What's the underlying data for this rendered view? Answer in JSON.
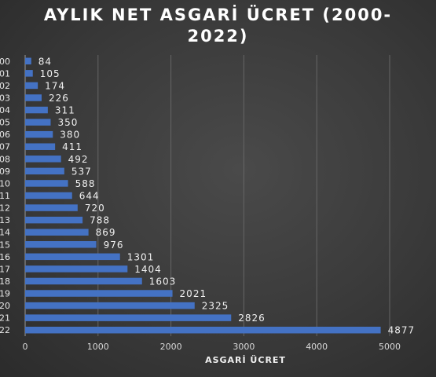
{
  "chart_data": {
    "type": "bar",
    "orientation": "horizontal",
    "title_line1": "AYLIK NET ASGARİ ÜCRET (2000-",
    "title_line2": "2022)",
    "xlabel": "ASGARİ ÜCRET",
    "ylabel": "",
    "categories": [
      "00",
      "01",
      "02",
      "03",
      "04",
      "05",
      "06",
      "07",
      "08",
      "09",
      "10",
      "11",
      "12",
      "13",
      "14",
      "15",
      "16",
      "17",
      "18",
      "19",
      "20",
      "21",
      "22"
    ],
    "values": [
      84,
      105,
      174,
      226,
      311,
      350,
      380,
      411,
      492,
      537,
      588,
      644,
      720,
      788,
      869,
      976,
      1301,
      1404,
      1603,
      2021,
      2325,
      2826,
      4877
    ],
    "xlim": [
      0,
      5000
    ],
    "xticks": [
      0,
      1000,
      2000,
      3000,
      4000,
      5000
    ],
    "grid": true,
    "bar_color": "#4472c4"
  }
}
